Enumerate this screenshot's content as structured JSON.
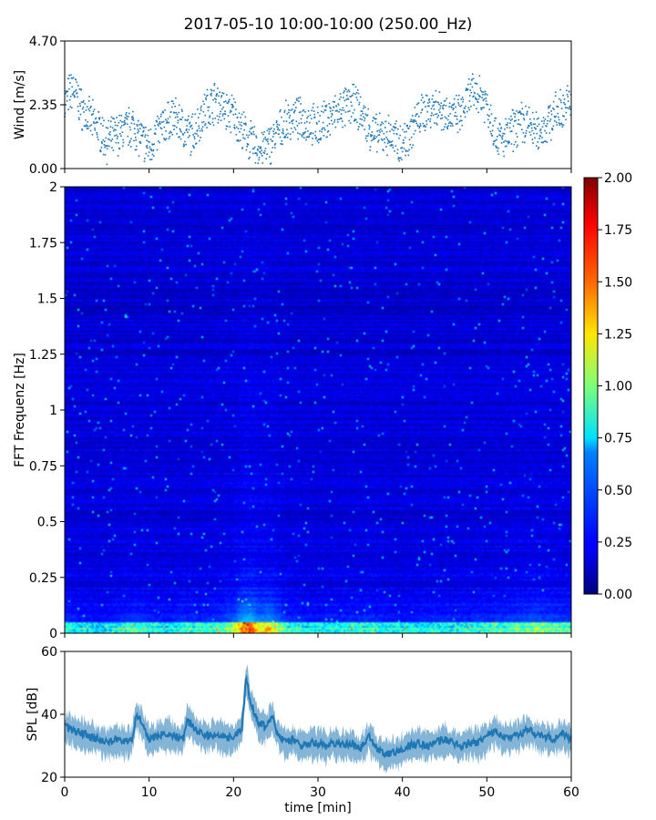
{
  "title": "2017-05-10 10:00-10:00 (250.00_Hz)",
  "chart_data": [
    {
      "type": "scatter",
      "ylabel": "Wind [m/s]",
      "ylim": [
        0.0,
        4.7
      ],
      "yticks": [
        "0.00",
        "2.35",
        "4.70"
      ],
      "xlim": [
        0,
        60
      ],
      "series": [
        {
          "color": "#1f77b4",
          "x": [
            0,
            1,
            2,
            3,
            4,
            5,
            6,
            7,
            8,
            9,
            10,
            11,
            12,
            13,
            14,
            15,
            16,
            17,
            18,
            19,
            20,
            21,
            22,
            23,
            24,
            25,
            26,
            27,
            28,
            29,
            30,
            31,
            32,
            33,
            34,
            35,
            36,
            37,
            38,
            39,
            40,
            41,
            42,
            43,
            44,
            45,
            46,
            47,
            48,
            49,
            50,
            51,
            52,
            53,
            54,
            55,
            56,
            57,
            58,
            59,
            60
          ],
          "y": [
            2.4,
            3.0,
            2.2,
            1.8,
            1.5,
            1.0,
            1.2,
            1.4,
            1.6,
            1.1,
            0.8,
            1.3,
            1.7,
            1.9,
            1.5,
            1.2,
            1.8,
            2.3,
            2.5,
            2.1,
            2.0,
            1.4,
            1.0,
            0.7,
            0.8,
            1.2,
            1.6,
            1.9,
            1.8,
            1.7,
            1.5,
            1.8,
            2.0,
            2.2,
            2.4,
            2.1,
            1.5,
            1.2,
            1.3,
            1.1,
            0.9,
            1.4,
            1.9,
            2.2,
            2.3,
            2.1,
            1.9,
            2.0,
            2.7,
            2.8,
            2.4,
            1.3,
            1.0,
            1.4,
            1.7,
            1.6,
            1.3,
            1.6,
            2.0,
            2.2,
            2.5
          ]
        }
      ]
    },
    {
      "type": "heatmap",
      "ylabel": "FFT Frequenz [Hz]",
      "ylim": [
        0,
        2
      ],
      "yticks": [
        "0",
        "0.25",
        "0.5",
        "0.75",
        "1",
        "1.25",
        "1.5",
        "1.75",
        "2"
      ],
      "xlim": [
        0,
        60
      ],
      "colormap": "jet",
      "colorbar": {
        "range": [
          0.0,
          2.0
        ],
        "ticks": [
          "0.00",
          "0.25",
          "0.50",
          "0.75",
          "1.00",
          "1.25",
          "1.50",
          "1.75",
          "2.00"
        ]
      },
      "activity_profile": {
        "x": [
          0,
          2,
          4,
          6,
          8,
          10,
          12,
          14,
          16,
          18,
          20,
          21,
          22,
          23,
          24,
          25,
          26,
          28,
          30,
          32,
          34,
          36,
          38,
          40,
          42,
          44,
          46,
          48,
          50,
          52,
          54,
          56,
          58,
          60
        ],
        "level": [
          0.35,
          0.3,
          0.25,
          0.32,
          0.4,
          0.35,
          0.3,
          0.38,
          0.35,
          0.4,
          0.55,
          0.85,
          0.9,
          0.7,
          0.75,
          0.6,
          0.4,
          0.32,
          0.3,
          0.32,
          0.35,
          0.38,
          0.3,
          0.28,
          0.32,
          0.35,
          0.33,
          0.35,
          0.38,
          0.4,
          0.45,
          0.5,
          0.42,
          0.4
        ]
      }
    },
    {
      "type": "line",
      "xlabel": "time [min]",
      "ylabel": "SPL [dB]",
      "ylim": [
        20,
        60
      ],
      "yticks": [
        "20",
        "40",
        "60"
      ],
      "xlim": [
        0,
        60
      ],
      "xticks": [
        "0",
        "10",
        "20",
        "30",
        "40",
        "50",
        "60"
      ],
      "series": [
        {
          "color": "#1f77b4",
          "x": [
            0,
            1,
            2,
            3,
            4,
            5,
            6,
            7,
            8,
            8.5,
            9,
            10,
            11,
            12,
            13,
            14,
            14.5,
            15,
            16,
            17,
            18,
            19,
            20,
            21,
            21.5,
            22,
            23,
            24,
            24.5,
            25,
            26,
            27,
            28,
            29,
            30,
            31,
            32,
            33,
            34,
            35,
            36,
            37,
            38,
            39,
            40,
            41,
            42,
            43,
            44,
            45,
            46,
            47,
            48,
            49,
            50,
            51,
            52,
            53,
            54,
            55,
            56,
            57,
            58,
            59,
            60
          ],
          "y": [
            36,
            35,
            34,
            33,
            32,
            31,
            32,
            31,
            32,
            40,
            38,
            32,
            33,
            34,
            33,
            32,
            38,
            37,
            34,
            33,
            34,
            33,
            32,
            36,
            52,
            44,
            37,
            36,
            40,
            35,
            31,
            32,
            30,
            31,
            31,
            30,
            31,
            30,
            31,
            29,
            33,
            29,
            27,
            28,
            29,
            30,
            31,
            30,
            31,
            32,
            31,
            30,
            31,
            31,
            33,
            35,
            32,
            33,
            34,
            35,
            33,
            33,
            32,
            34,
            32
          ]
        }
      ]
    }
  ]
}
